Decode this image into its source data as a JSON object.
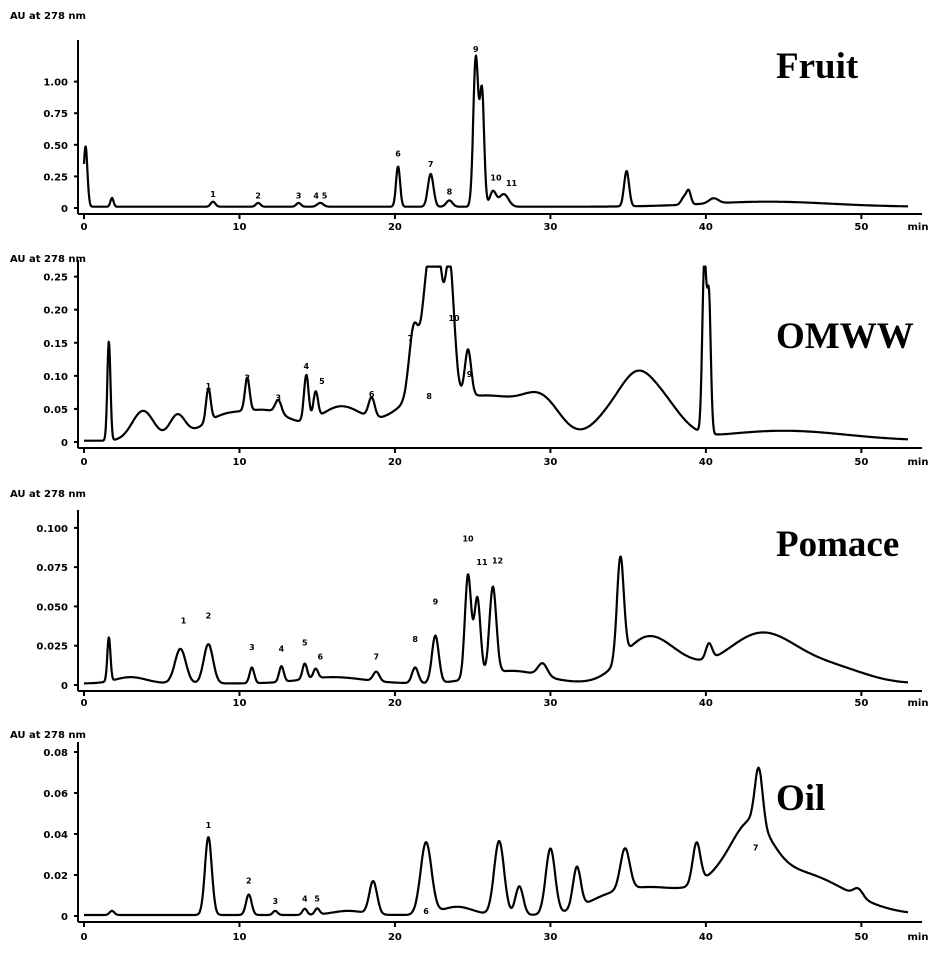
{
  "chart_data": [
    {
      "type": "line",
      "title": "Fruit",
      "ylabel": "AU at 278 nm",
      "xlabel": "min",
      "xlim": [
        0,
        53
      ],
      "ylim": [
        0,
        1.25
      ],
      "x_ticks": [
        0,
        10,
        20,
        30,
        40,
        50
      ],
      "y_ticks": [
        0,
        0.25,
        0.5,
        0.75,
        1.0
      ],
      "y_tick_labels": [
        "0",
        "0.25",
        "0.50",
        "0.75",
        "1.00"
      ],
      "baseline": 0.01,
      "peaks": [
        {
          "x": 0.1,
          "h": 0.48,
          "w": 0.12
        },
        {
          "x": 1.8,
          "h": 0.07,
          "w": 0.1
        },
        {
          "x": 8.3,
          "h": 0.04,
          "w": 0.15
        },
        {
          "x": 11.2,
          "h": 0.03,
          "w": 0.15
        },
        {
          "x": 13.8,
          "h": 0.03,
          "w": 0.15
        },
        {
          "x": 15.2,
          "h": 0.03,
          "w": 0.2
        },
        {
          "x": 20.2,
          "h": 0.32,
          "w": 0.13
        },
        {
          "x": 22.3,
          "h": 0.26,
          "w": 0.18
        },
        {
          "x": 23.5,
          "h": 0.05,
          "w": 0.2
        },
        {
          "x": 25.2,
          "h": 1.18,
          "w": 0.16
        },
        {
          "x": 25.6,
          "h": 0.9,
          "w": 0.14
        },
        {
          "x": 26.3,
          "h": 0.12,
          "w": 0.2
        },
        {
          "x": 27.0,
          "h": 0.1,
          "w": 0.3
        },
        {
          "x": 34.9,
          "h": 0.28,
          "w": 0.16
        },
        {
          "x": 38.6,
          "h": 0.06,
          "w": 0.18
        },
        {
          "x": 38.9,
          "h": 0.1,
          "w": 0.14
        },
        {
          "x": 40.5,
          "h": 0.04,
          "w": 0.3
        }
      ],
      "humps": [
        {
          "x": 44,
          "h": 0.04,
          "w": 4
        }
      ],
      "peak_labels": [
        {
          "text": "1",
          "x": 8.3,
          "y": 0.07
        },
        {
          "text": "2",
          "x": 11.2,
          "y": 0.06
        },
        {
          "text": "3",
          "x": 13.8,
          "y": 0.06
        },
        {
          "text": "4 5",
          "x": 15.2,
          "y": 0.06
        },
        {
          "text": "6",
          "x": 20.2,
          "y": 0.39
        },
        {
          "text": "7",
          "x": 22.3,
          "y": 0.31
        },
        {
          "text": "8",
          "x": 23.5,
          "y": 0.09
        },
        {
          "text": "9",
          "x": 25.2,
          "y": 1.22
        },
        {
          "text": "10",
          "x": 26.5,
          "y": 0.2
        },
        {
          "text": "11",
          "x": 27.5,
          "y": 0.16
        }
      ]
    },
    {
      "type": "line",
      "title": "OMWW",
      "ylabel": "AU at 278 nm",
      "xlabel": "min",
      "xlim": [
        0,
        53
      ],
      "ylim": [
        0,
        0.26
      ],
      "x_ticks": [
        0,
        10,
        20,
        30,
        40,
        50
      ],
      "y_ticks": [
        0,
        0.05,
        0.1,
        0.15,
        0.2,
        0.25
      ],
      "y_tick_labels": [
        "0",
        "0.05",
        "0.10",
        "0.15",
        "0.20",
        "0.25"
      ],
      "baseline": 0.002,
      "peaks": [
        {
          "x": 1.6,
          "h": 0.15,
          "w": 0.1
        },
        {
          "x": 8.0,
          "h": 0.05,
          "w": 0.15
        },
        {
          "x": 10.5,
          "h": 0.05,
          "w": 0.15
        },
        {
          "x": 12.5,
          "h": 0.02,
          "w": 0.2
        },
        {
          "x": 14.3,
          "h": 0.07,
          "w": 0.15
        },
        {
          "x": 14.9,
          "h": 0.04,
          "w": 0.15
        },
        {
          "x": 18.5,
          "h": 0.03,
          "w": 0.2
        },
        {
          "x": 21.2,
          "h": 0.1,
          "w": 0.3
        },
        {
          "x": 22.2,
          "h": 0.2,
          "w": 0.4
        },
        {
          "x": 22.8,
          "h": 0.14,
          "w": 0.25
        },
        {
          "x": 23.5,
          "h": 0.2,
          "w": 0.3
        },
        {
          "x": 24.7,
          "h": 0.07,
          "w": 0.2
        },
        {
          "x": 39.9,
          "h": 0.26,
          "w": 0.13
        },
        {
          "x": 40.2,
          "h": 0.2,
          "w": 0.12
        }
      ],
      "humps": [
        {
          "x": 3.8,
          "h": 0.045,
          "w": 0.7
        },
        {
          "x": 6.0,
          "h": 0.035,
          "w": 0.5
        },
        {
          "x": 9.0,
          "h": 0.035,
          "w": 1.5
        },
        {
          "x": 12.0,
          "h": 0.04,
          "w": 1.5
        },
        {
          "x": 16.5,
          "h": 0.05,
          "w": 1.5
        },
        {
          "x": 22.0,
          "h": 0.07,
          "w": 2.0
        },
        {
          "x": 26.5,
          "h": 0.06,
          "w": 2.0
        },
        {
          "x": 29.5,
          "h": 0.05,
          "w": 1.2
        },
        {
          "x": 34.0,
          "h": 0.04,
          "w": 1.2
        },
        {
          "x": 35.5,
          "h": 0.055,
          "w": 1.0
        },
        {
          "x": 37.0,
          "h": 0.06,
          "w": 1.3
        },
        {
          "x": 45.0,
          "h": 0.015,
          "w": 4.0
        }
      ],
      "peak_labels": [
        {
          "text": "1",
          "x": 8.0,
          "y": 0.077
        },
        {
          "text": "2",
          "x": 10.5,
          "y": 0.09
        },
        {
          "text": "3",
          "x": 12.5,
          "y": 0.06
        },
        {
          "text": "4",
          "x": 14.3,
          "y": 0.107
        },
        {
          "text": "5",
          "x": 15.3,
          "y": 0.085
        },
        {
          "text": "6",
          "x": 18.5,
          "y": 0.065
        },
        {
          "text": "7",
          "x": 21.0,
          "y": 0.15
        },
        {
          "text": "8",
          "x": 22.2,
          "y": 0.062
        },
        {
          "text": "9",
          "x": 24.8,
          "y": 0.095
        },
        {
          "text": "10",
          "x": 23.8,
          "y": 0.18
        }
      ]
    },
    {
      "type": "line",
      "title": "Pomace",
      "ylabel": "AU at 278 nm",
      "xlabel": "min",
      "xlim": [
        0,
        53
      ],
      "ylim": [
        0,
        0.105
      ],
      "x_ticks": [
        0,
        10,
        20,
        30,
        40,
        50
      ],
      "y_ticks": [
        0,
        0.025,
        0.05,
        0.075,
        0.1
      ],
      "y_tick_labels": [
        "0",
        "0.025",
        "0.050",
        "0.075",
        "0.100"
      ],
      "baseline": 0.001,
      "peaks": [
        {
          "x": 1.6,
          "h": 0.028,
          "w": 0.1
        },
        {
          "x": 6.2,
          "h": 0.022,
          "w": 0.35
        },
        {
          "x": 8.0,
          "h": 0.025,
          "w": 0.3
        },
        {
          "x": 10.8,
          "h": 0.01,
          "w": 0.15
        },
        {
          "x": 12.7,
          "h": 0.01,
          "w": 0.15
        },
        {
          "x": 14.2,
          "h": 0.01,
          "w": 0.15
        },
        {
          "x": 14.9,
          "h": 0.006,
          "w": 0.15
        },
        {
          "x": 18.8,
          "h": 0.006,
          "w": 0.2
        },
        {
          "x": 21.3,
          "h": 0.01,
          "w": 0.2
        },
        {
          "x": 22.6,
          "h": 0.03,
          "w": 0.22
        },
        {
          "x": 24.7,
          "h": 0.066,
          "w": 0.2
        },
        {
          "x": 25.3,
          "h": 0.05,
          "w": 0.2
        },
        {
          "x": 26.3,
          "h": 0.055,
          "w": 0.22
        },
        {
          "x": 29.5,
          "h": 0.008,
          "w": 0.3
        },
        {
          "x": 34.5,
          "h": 0.065,
          "w": 0.22
        },
        {
          "x": 40.2,
          "h": 0.01,
          "w": 0.2
        }
      ],
      "humps": [
        {
          "x": 3.0,
          "h": 0.004,
          "w": 1.0
        },
        {
          "x": 16.0,
          "h": 0.004,
          "w": 2.0
        },
        {
          "x": 27.5,
          "h": 0.008,
          "w": 2.0
        },
        {
          "x": 36.0,
          "h": 0.025,
          "w": 1.5
        },
        {
          "x": 38.0,
          "h": 0.01,
          "w": 1.5
        },
        {
          "x": 43.6,
          "h": 0.032,
          "w": 2.4
        },
        {
          "x": 48.5,
          "h": 0.008,
          "w": 2.0
        }
      ],
      "peak_labels": [
        {
          "text": "1",
          "x": 6.4,
          "y": 0.038
        },
        {
          "text": "2",
          "x": 8.0,
          "y": 0.041
        },
        {
          "text": "3",
          "x": 10.8,
          "y": 0.021
        },
        {
          "text": "4",
          "x": 12.7,
          "y": 0.02
        },
        {
          "text": "5",
          "x": 14.2,
          "y": 0.024
        },
        {
          "text": "6",
          "x": 15.2,
          "y": 0.015
        },
        {
          "text": "7",
          "x": 18.8,
          "y": 0.015
        },
        {
          "text": "8",
          "x": 21.3,
          "y": 0.026
        },
        {
          "text": "9",
          "x": 22.6,
          "y": 0.05
        },
        {
          "text": "10",
          "x": 24.7,
          "y": 0.09
        },
        {
          "text": "11",
          "x": 25.6,
          "y": 0.075
        },
        {
          "text": "12",
          "x": 26.6,
          "y": 0.076
        }
      ]
    },
    {
      "type": "line",
      "title": "Oil",
      "ylabel": "AU at 278 nm",
      "xlabel": "min",
      "xlim": [
        0,
        53
      ],
      "ylim": [
        0,
        0.08
      ],
      "x_ticks": [
        0,
        10,
        20,
        30,
        40,
        50
      ],
      "y_ticks": [
        0,
        0.02,
        0.04,
        0.06,
        0.08
      ],
      "y_tick_labels": [
        "0",
        "0.02",
        "0.04",
        "0.06",
        "0.08"
      ],
      "baseline": 0.0005,
      "peaks": [
        {
          "x": 1.8,
          "h": 0.002,
          "w": 0.15
        },
        {
          "x": 8.0,
          "h": 0.038,
          "w": 0.22
        },
        {
          "x": 10.6,
          "h": 0.01,
          "w": 0.18
        },
        {
          "x": 12.3,
          "h": 0.002,
          "w": 0.15
        },
        {
          "x": 14.2,
          "h": 0.003,
          "w": 0.15
        },
        {
          "x": 15.0,
          "h": 0.003,
          "w": 0.15
        },
        {
          "x": 18.6,
          "h": 0.016,
          "w": 0.25
        },
        {
          "x": 22.0,
          "h": 0.035,
          "w": 0.35
        },
        {
          "x": 26.7,
          "h": 0.036,
          "w": 0.32
        },
        {
          "x": 28.0,
          "h": 0.014,
          "w": 0.25
        },
        {
          "x": 30.0,
          "h": 0.032,
          "w": 0.3
        },
        {
          "x": 31.7,
          "h": 0.02,
          "w": 0.25
        },
        {
          "x": 34.8,
          "h": 0.02,
          "w": 0.3
        },
        {
          "x": 39.4,
          "h": 0.02,
          "w": 0.25
        },
        {
          "x": 43.4,
          "h": 0.027,
          "w": 0.25
        },
        {
          "x": 49.8,
          "h": 0.004,
          "w": 0.3
        }
      ],
      "humps": [
        {
          "x": 17.0,
          "h": 0.002,
          "w": 1.0
        },
        {
          "x": 24.0,
          "h": 0.004,
          "w": 1.0
        },
        {
          "x": 33.5,
          "h": 0.006,
          "w": 1.5
        },
        {
          "x": 36.5,
          "h": 0.012,
          "w": 2.0
        },
        {
          "x": 41.5,
          "h": 0.016,
          "w": 2.0
        },
        {
          "x": 43.0,
          "h": 0.022,
          "w": 1.2
        },
        {
          "x": 46.0,
          "h": 0.02,
          "w": 3.0
        }
      ],
      "peak_labels": [
        {
          "text": "1",
          "x": 8.0,
          "y": 0.042
        },
        {
          "text": "2",
          "x": 10.6,
          "y": 0.015
        },
        {
          "text": "3",
          "x": 12.3,
          "y": 0.005
        },
        {
          "text": "4",
          "x": 14.2,
          "y": 0.006
        },
        {
          "text": "5",
          "x": 15.0,
          "y": 0.006
        },
        {
          "text": "6",
          "x": 22.0,
          "y": 0.0
        },
        {
          "text": "7",
          "x": 43.2,
          "y": 0.031
        }
      ]
    }
  ]
}
